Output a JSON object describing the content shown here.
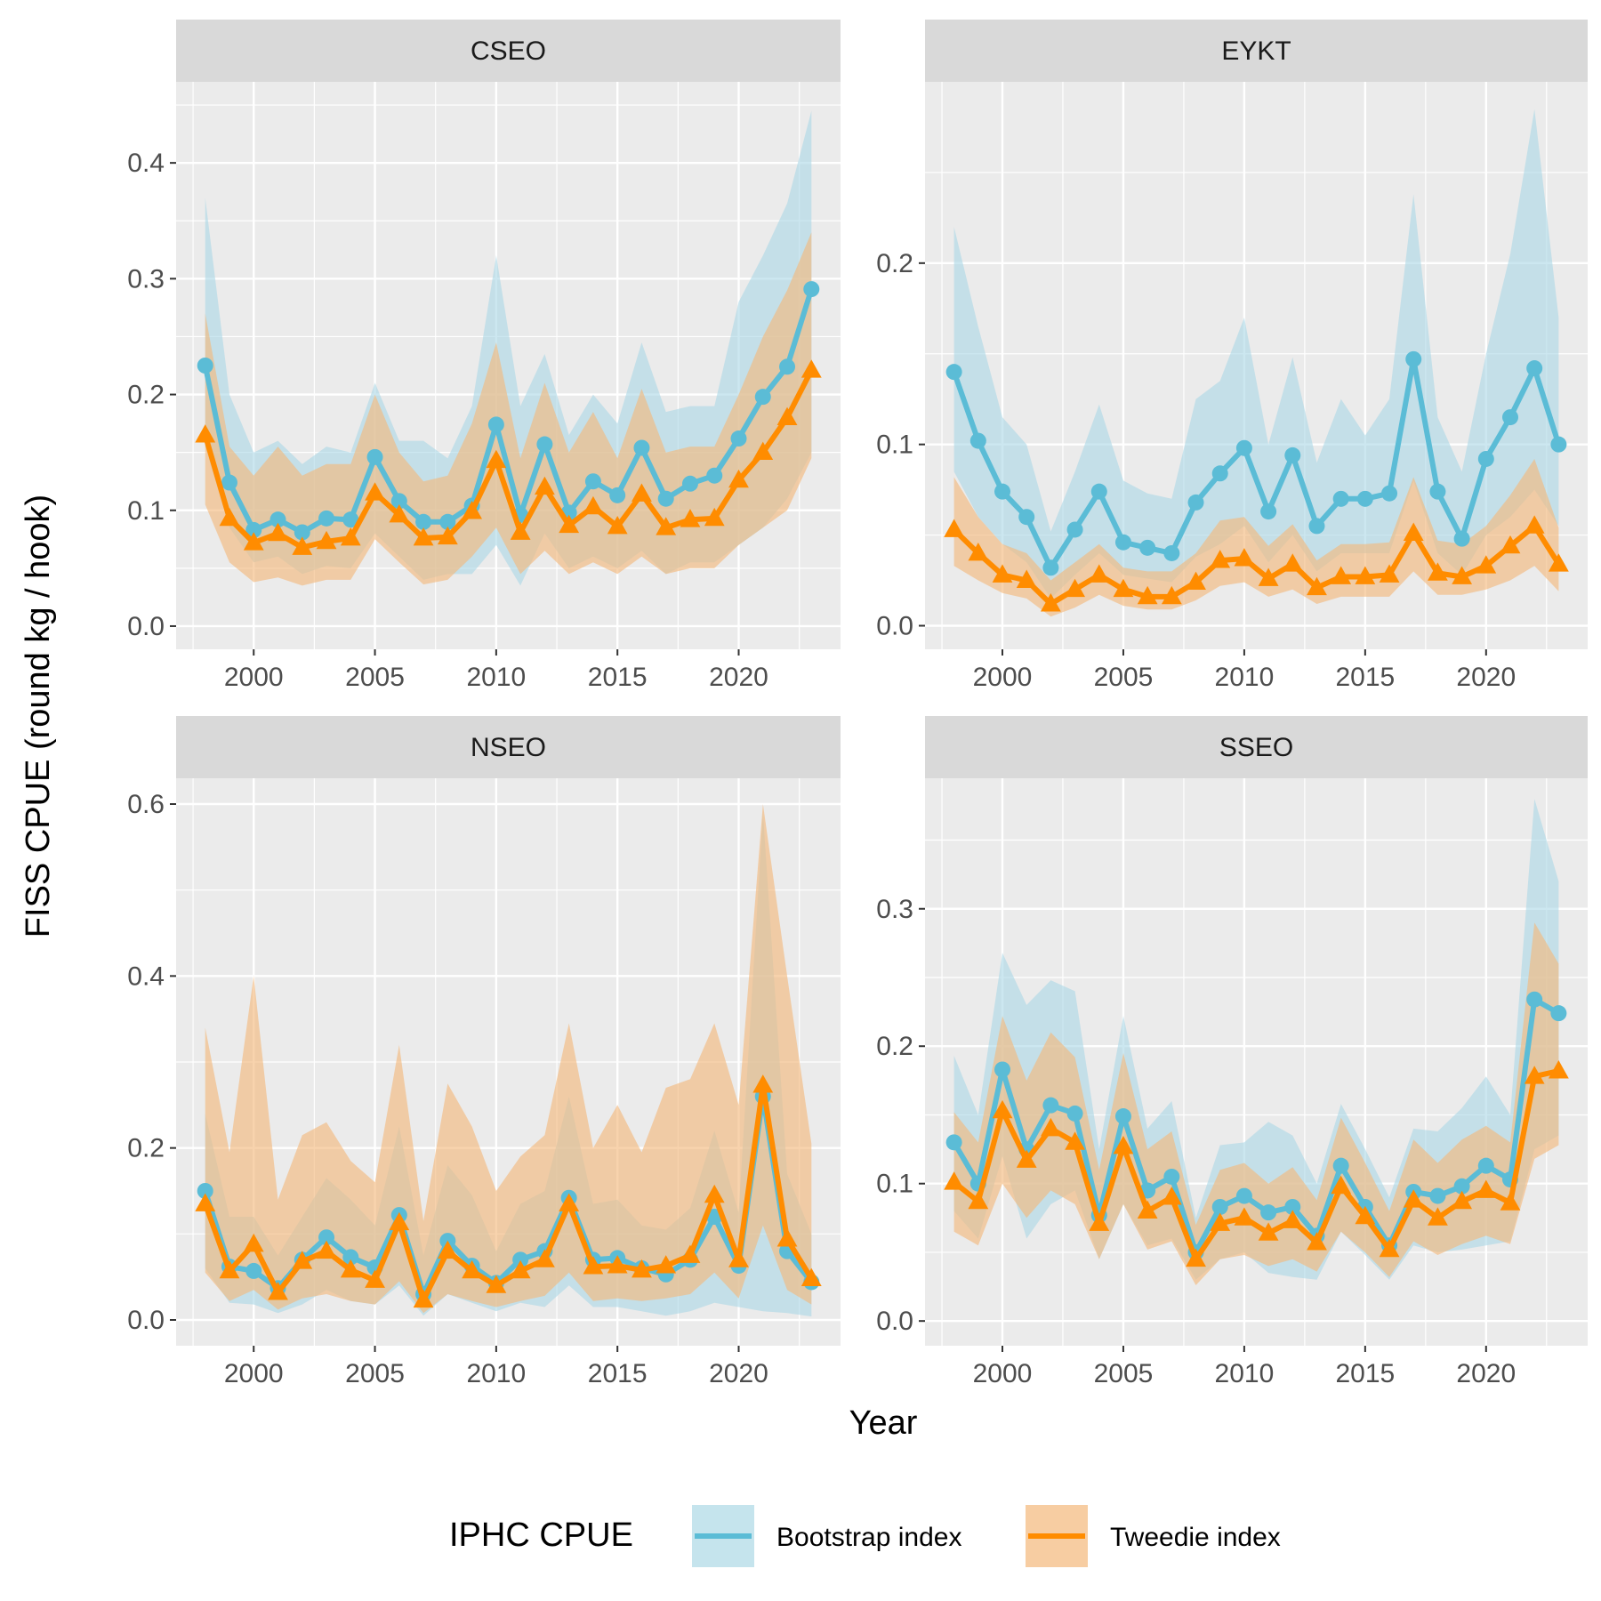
{
  "chart_data": {
    "type": "line",
    "layout": "facet_wrap 2x2",
    "xlabel": "Year",
    "ylabel": "FISS CPUE (round kg / hook)",
    "legend": {
      "title": "IPHC CPUE",
      "position": "bottom",
      "entries": [
        "Bootstrap index",
        "Tweedie index"
      ]
    },
    "colors": {
      "bootstrap": "#5bbcd6",
      "tweedie": "#ff8c00",
      "bootstrap_ribbon": "#add8e6",
      "tweedie_ribbon": "#f4b87a",
      "panel_background": "#ebebeb",
      "strip_background": "#d9d9d9"
    },
    "x": [
      1998,
      1999,
      2000,
      2001,
      2002,
      2003,
      2004,
      2005,
      2006,
      2007,
      2008,
      2009,
      2010,
      2011,
      2012,
      2013,
      2014,
      2015,
      2016,
      2017,
      2018,
      2019,
      2020,
      2021,
      2022,
      2023
    ],
    "xlim": [
      1996.8,
      2024.2
    ],
    "xticks": [
      2000,
      2005,
      2010,
      2015,
      2020
    ],
    "xtick_labels": [
      "2000",
      "2005",
      "2010",
      "2015",
      "2020"
    ],
    "grid": true,
    "panels": [
      {
        "title": "CSEO",
        "ylim": [
          -0.02,
          0.47
        ],
        "yticks": [
          0.0,
          0.1,
          0.2,
          0.3,
          0.4
        ],
        "ytick_labels": [
          "0.0",
          "0.1",
          "0.2",
          "0.3",
          "0.4"
        ],
        "series": [
          {
            "name": "Bootstrap index",
            "values": [
              0.225,
              0.124,
              0.083,
              0.092,
              0.081,
              0.093,
              0.092,
              0.146,
              0.108,
              0.09,
              0.09,
              0.104,
              0.174,
              0.096,
              0.157,
              0.098,
              0.125,
              0.113,
              0.154,
              0.11,
              0.123,
              0.13,
              0.162,
              0.198,
              0.224,
              0.291
            ],
            "lower": [
              0.155,
              0.085,
              0.055,
              0.06,
              0.045,
              0.052,
              0.05,
              0.08,
              0.06,
              0.04,
              0.045,
              0.045,
              0.07,
              0.035,
              0.08,
              0.05,
              0.06,
              0.05,
              0.065,
              0.045,
              0.055,
              0.055,
              0.07,
              0.085,
              0.11,
              0.15
            ],
            "upper": [
              0.37,
              0.2,
              0.15,
              0.16,
              0.14,
              0.155,
              0.15,
              0.21,
              0.16,
              0.16,
              0.145,
              0.19,
              0.32,
              0.19,
              0.235,
              0.165,
              0.2,
              0.175,
              0.245,
              0.185,
              0.19,
              0.19,
              0.28,
              0.32,
              0.365,
              0.445
            ]
          },
          {
            "name": "Tweedie index",
            "values": [
              0.165,
              0.093,
              0.072,
              0.08,
              0.068,
              0.073,
              0.076,
              0.115,
              0.096,
              0.076,
              0.077,
              0.099,
              0.143,
              0.081,
              0.12,
              0.087,
              0.103,
              0.086,
              0.114,
              0.085,
              0.092,
              0.093,
              0.126,
              0.15,
              0.18,
              0.221
            ],
            "lower": [
              0.105,
              0.055,
              0.038,
              0.042,
              0.035,
              0.04,
              0.04,
              0.075,
              0.055,
              0.036,
              0.04,
              0.06,
              0.085,
              0.045,
              0.065,
              0.045,
              0.055,
              0.045,
              0.06,
              0.045,
              0.05,
              0.05,
              0.07,
              0.085,
              0.1,
              0.145
            ],
            "upper": [
              0.27,
              0.155,
              0.13,
              0.155,
              0.13,
              0.14,
              0.14,
              0.2,
              0.15,
              0.125,
              0.13,
              0.175,
              0.245,
              0.145,
              0.21,
              0.15,
              0.185,
              0.145,
              0.205,
              0.15,
              0.155,
              0.155,
              0.2,
              0.25,
              0.29,
              0.34
            ]
          }
        ]
      },
      {
        "title": "EYKT",
        "ylim": [
          -0.013,
          0.3
        ],
        "yticks": [
          0.0,
          0.1,
          0.2
        ],
        "ytick_labels": [
          "0.0",
          "0.1",
          "0.2"
        ],
        "series": [
          {
            "name": "Bootstrap index",
            "values": [
              0.14,
              0.102,
              0.074,
              0.06,
              0.032,
              0.053,
              0.074,
              0.046,
              0.043,
              0.04,
              0.068,
              0.084,
              0.098,
              0.063,
              0.094,
              0.055,
              0.07,
              0.07,
              0.073,
              0.147,
              0.074,
              0.048,
              0.092,
              0.115,
              0.142,
              0.1
            ],
            "lower": [
              0.085,
              0.06,
              0.045,
              0.035,
              0.015,
              0.028,
              0.04,
              0.028,
              0.026,
              0.024,
              0.038,
              0.045,
              0.055,
              0.035,
              0.05,
              0.03,
              0.04,
              0.04,
              0.04,
              0.08,
              0.04,
              0.028,
              0.05,
              0.06,
              0.075,
              0.055
            ],
            "upper": [
              0.22,
              0.165,
              0.115,
              0.1,
              0.052,
              0.085,
              0.122,
              0.08,
              0.073,
              0.07,
              0.125,
              0.135,
              0.17,
              0.1,
              0.148,
              0.09,
              0.125,
              0.105,
              0.125,
              0.238,
              0.115,
              0.085,
              0.15,
              0.205,
              0.285,
              0.17
            ]
          },
          {
            "name": "Tweedie index",
            "values": [
              0.053,
              0.04,
              0.028,
              0.025,
              0.012,
              0.02,
              0.028,
              0.02,
              0.016,
              0.016,
              0.024,
              0.036,
              0.037,
              0.026,
              0.034,
              0.021,
              0.027,
              0.027,
              0.028,
              0.051,
              0.029,
              0.027,
              0.033,
              0.044,
              0.055,
              0.034
            ],
            "lower": [
              0.033,
              0.025,
              0.018,
              0.015,
              0.005,
              0.01,
              0.017,
              0.011,
              0.009,
              0.009,
              0.014,
              0.022,
              0.024,
              0.016,
              0.02,
              0.012,
              0.016,
              0.016,
              0.016,
              0.03,
              0.017,
              0.017,
              0.02,
              0.025,
              0.033,
              0.019
            ],
            "upper": [
              0.082,
              0.06,
              0.045,
              0.04,
              0.025,
              0.035,
              0.045,
              0.032,
              0.03,
              0.03,
              0.04,
              0.058,
              0.06,
              0.044,
              0.056,
              0.036,
              0.045,
              0.045,
              0.046,
              0.082,
              0.047,
              0.045,
              0.055,
              0.072,
              0.092,
              0.054
            ]
          }
        ]
      },
      {
        "title": "NSEO",
        "ylim": [
          -0.03,
          0.63
        ],
        "yticks": [
          0.0,
          0.2,
          0.4,
          0.6
        ],
        "ytick_labels": [
          "0.0",
          "0.2",
          "0.4",
          "0.6"
        ],
        "series": [
          {
            "name": "Bootstrap index",
            "values": [
              0.15,
              0.062,
              0.057,
              0.037,
              0.07,
              0.096,
              0.073,
              0.061,
              0.122,
              0.03,
              0.092,
              0.063,
              0.043,
              0.07,
              0.08,
              0.142,
              0.07,
              0.072,
              0.06,
              0.053,
              0.07,
              0.12,
              0.063,
              0.26,
              0.08,
              0.044
            ],
            "lower": [
              0.06,
              0.02,
              0.018,
              0.008,
              0.018,
              0.035,
              0.022,
              0.018,
              0.04,
              0.005,
              0.03,
              0.02,
              0.01,
              0.02,
              0.015,
              0.04,
              0.015,
              0.015,
              0.01,
              0.005,
              0.01,
              0.02,
              0.015,
              0.01,
              0.008,
              0.004
            ],
            "upper": [
              0.24,
              0.12,
              0.12,
              0.075,
              0.12,
              0.165,
              0.14,
              0.11,
              0.225,
              0.075,
              0.18,
              0.145,
              0.08,
              0.135,
              0.15,
              0.26,
              0.135,
              0.14,
              0.11,
              0.105,
              0.13,
              0.22,
              0.125,
              0.59,
              0.17,
              0.1
            ]
          },
          {
            "name": "Tweedie index",
            "values": [
              0.135,
              0.057,
              0.088,
              0.032,
              0.068,
              0.08,
              0.058,
              0.046,
              0.113,
              0.023,
              0.08,
              0.057,
              0.04,
              0.057,
              0.07,
              0.135,
              0.062,
              0.063,
              0.058,
              0.063,
              0.075,
              0.145,
              0.07,
              0.273,
              0.094,
              0.048
            ],
            "lower": [
              0.055,
              0.022,
              0.035,
              0.012,
              0.025,
              0.03,
              0.022,
              0.018,
              0.045,
              0.008,
              0.03,
              0.022,
              0.015,
              0.022,
              0.028,
              0.055,
              0.022,
              0.025,
              0.022,
              0.025,
              0.03,
              0.055,
              0.025,
              0.11,
              0.035,
              0.018
            ],
            "upper": [
              0.34,
              0.195,
              0.4,
              0.14,
              0.215,
              0.23,
              0.185,
              0.16,
              0.32,
              0.115,
              0.275,
              0.225,
              0.15,
              0.19,
              0.215,
              0.345,
              0.2,
              0.25,
              0.195,
              0.27,
              0.28,
              0.345,
              0.25,
              0.6,
              0.4,
              0.205
            ]
          }
        ]
      },
      {
        "title": "SSEO",
        "ylim": [
          -0.018,
          0.395
        ],
        "yticks": [
          0.0,
          0.1,
          0.2,
          0.3
        ],
        "ytick_labels": [
          "0.0",
          "0.1",
          "0.2",
          "0.3"
        ],
        "series": [
          {
            "name": "Bootstrap index",
            "values": [
              0.13,
              0.1,
              0.183,
              0.125,
              0.157,
              0.151,
              0.077,
              0.149,
              0.095,
              0.105,
              0.05,
              0.083,
              0.091,
              0.079,
              0.083,
              0.062,
              0.113,
              0.083,
              0.055,
              0.094,
              0.091,
              0.098,
              0.113,
              0.103,
              0.234,
              0.224
            ],
            "lower": [
              0.08,
              0.06,
              0.12,
              0.06,
              0.085,
              0.095,
              0.045,
              0.085,
              0.055,
              0.06,
              0.03,
              0.045,
              0.05,
              0.035,
              0.032,
              0.03,
              0.065,
              0.048,
              0.03,
              0.055,
              0.05,
              0.052,
              0.055,
              0.058,
              0.125,
              0.135
            ],
            "upper": [
              0.193,
              0.15,
              0.268,
              0.23,
              0.248,
              0.24,
              0.125,
              0.222,
              0.14,
              0.16,
              0.075,
              0.128,
              0.13,
              0.145,
              0.135,
              0.1,
              0.158,
              0.125,
              0.09,
              0.14,
              0.138,
              0.155,
              0.178,
              0.15,
              0.38,
              0.32
            ]
          },
          {
            "name": "Tweedie index",
            "values": [
              0.101,
              0.087,
              0.153,
              0.117,
              0.14,
              0.13,
              0.071,
              0.127,
              0.08,
              0.09,
              0.045,
              0.071,
              0.075,
              0.064,
              0.073,
              0.057,
              0.098,
              0.076,
              0.052,
              0.088,
              0.075,
              0.087,
              0.095,
              0.086,
              0.178,
              0.182
            ],
            "lower": [
              0.065,
              0.055,
              0.1,
              0.075,
              0.095,
              0.085,
              0.045,
              0.085,
              0.052,
              0.058,
              0.026,
              0.045,
              0.048,
              0.04,
              0.045,
              0.036,
              0.065,
              0.05,
              0.032,
              0.058,
              0.048,
              0.056,
              0.062,
              0.056,
              0.118,
              0.128
            ],
            "upper": [
              0.152,
              0.13,
              0.222,
              0.175,
              0.21,
              0.192,
              0.11,
              0.195,
              0.125,
              0.138,
              0.07,
              0.11,
              0.115,
              0.1,
              0.112,
              0.088,
              0.148,
              0.115,
              0.08,
              0.132,
              0.115,
              0.132,
              0.142,
              0.13,
              0.29,
              0.26
            ]
          }
        ]
      }
    ]
  }
}
